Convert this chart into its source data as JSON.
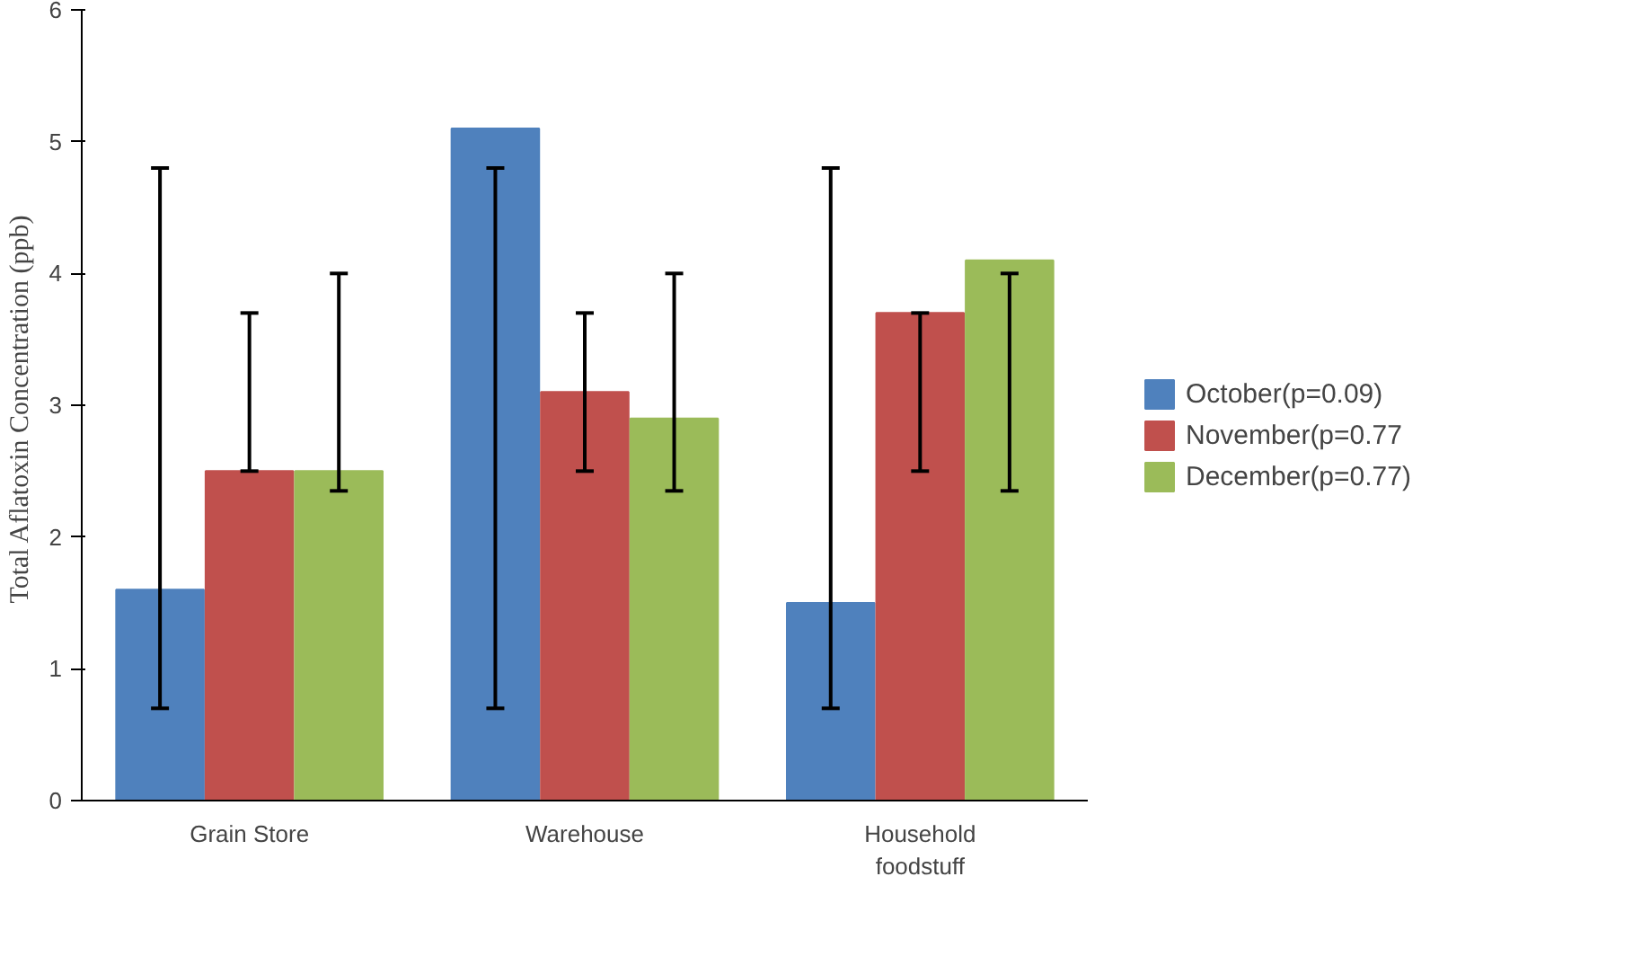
{
  "chart_data": {
    "type": "bar",
    "ylabel": "Total Aflatoxin  Concentration (ppb)",
    "categories": [
      "Grain Store",
      "Warehouse",
      "Household foodstuff"
    ],
    "ylim": [
      0,
      6
    ],
    "yticks": [
      0,
      1,
      2,
      3,
      4,
      5,
      6
    ],
    "grid": false,
    "legend": "right",
    "series": [
      {
        "name": "October(p=0.09)",
        "color": "#4f81bd",
        "values": [
          1.6,
          5.1,
          1.5
        ],
        "errors": [
          [
            0.7,
            4.8
          ],
          [
            0.7,
            4.8
          ],
          [
            0.7,
            4.8
          ]
        ]
      },
      {
        "name": "November(p=0.77",
        "color": "#c0504d",
        "values": [
          2.5,
          3.1,
          3.7
        ],
        "errors": [
          [
            2.5,
            3.7
          ],
          [
            2.5,
            3.7
          ],
          [
            2.5,
            3.7
          ]
        ]
      },
      {
        "name": "December(p=0.77)",
        "color": "#9bbb59",
        "values": [
          2.5,
          2.9,
          4.1
        ],
        "errors": [
          [
            2.35,
            4.0
          ],
          [
            2.35,
            4.0
          ],
          [
            2.35,
            4.0
          ]
        ]
      }
    ]
  }
}
